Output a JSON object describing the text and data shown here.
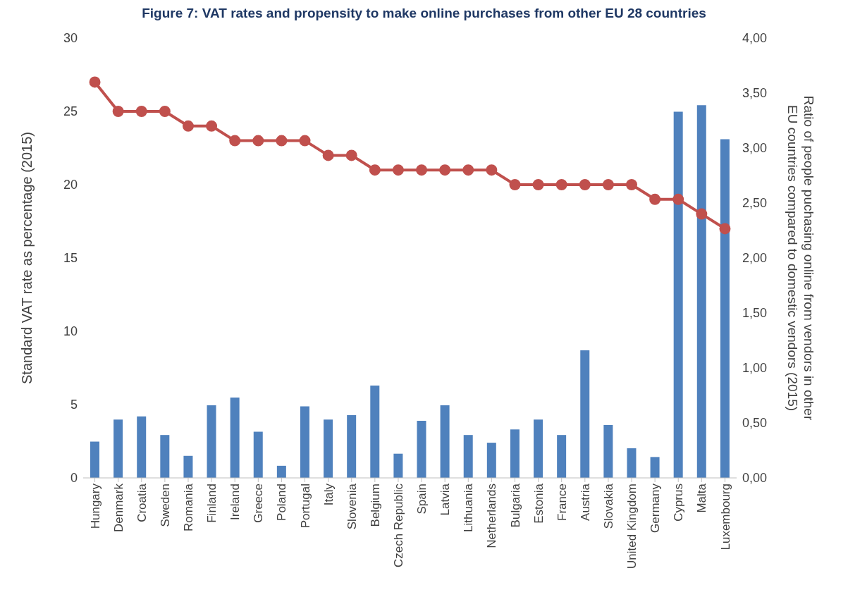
{
  "chart_data": {
    "type": "bar",
    "title": "Figure 7: VAT rates and propensity to make online purchases from other EU 28 countries",
    "ylabel": "Standard VAT rate as percentage (2015)",
    "y2label": "Ratio of people puchasing online from vendors in other EU countries compared to domestic vendors (2015)",
    "categories": [
      "Hungary",
      "Denmark",
      "Croatia",
      "Sweden",
      "Romania",
      "Finland",
      "Ireland",
      "Greece",
      "Poland",
      "Portugal",
      "Italy",
      "Slovenia",
      "Belgium",
      "Czech Republic",
      "Spain",
      "Latvia",
      "Lithuania",
      "Netherlands",
      "Bulgaria",
      "Estonia",
      "France",
      "Austria",
      "Slovakia",
      "United Kingdom",
      "Germany",
      "Cyprus",
      "Malta",
      "Luxembourg"
    ],
    "series": [
      {
        "axis": "y2",
        "color": "#4f81bd",
        "values": [
          0.33,
          0.53,
          0.56,
          0.39,
          0.2,
          0.66,
          0.73,
          0.42,
          0.11,
          0.65,
          0.53,
          0.57,
          0.84,
          0.22,
          0.52,
          0.66,
          0.39,
          0.32,
          0.44,
          0.53,
          0.39,
          1.16,
          0.48,
          0.27,
          0.19,
          3.33,
          3.39,
          3.08
        ]
      },
      {
        "type": "line",
        "axis": "y",
        "color": "#c0504d",
        "marker": "circle",
        "values": [
          27,
          25,
          25,
          25,
          24,
          24,
          23,
          23,
          23,
          23,
          22,
          22,
          21,
          21,
          21,
          21,
          21,
          21,
          20,
          20,
          20,
          20,
          20,
          20,
          19,
          19,
          18,
          17
        ]
      }
    ],
    "ylim": [
      0,
      30
    ],
    "yticks": [
      0,
      5,
      10,
      15,
      20,
      25,
      30
    ],
    "y2lim": [
      0,
      4
    ],
    "y2ticks": [
      {
        "value": 0,
        "label": "0,00"
      },
      {
        "value": 0.5,
        "label": "0,50"
      },
      {
        "value": 1,
        "label": "1,00"
      },
      {
        "value": 1.5,
        "label": "1,50"
      },
      {
        "value": 2,
        "label": "2,00"
      },
      {
        "value": 2.5,
        "label": "2,50"
      },
      {
        "value": 3,
        "label": "3,00"
      },
      {
        "value": 3.5,
        "label": "3,50"
      },
      {
        "value": 4,
        "label": "4,00"
      }
    ],
    "grid": false,
    "legend": false
  }
}
